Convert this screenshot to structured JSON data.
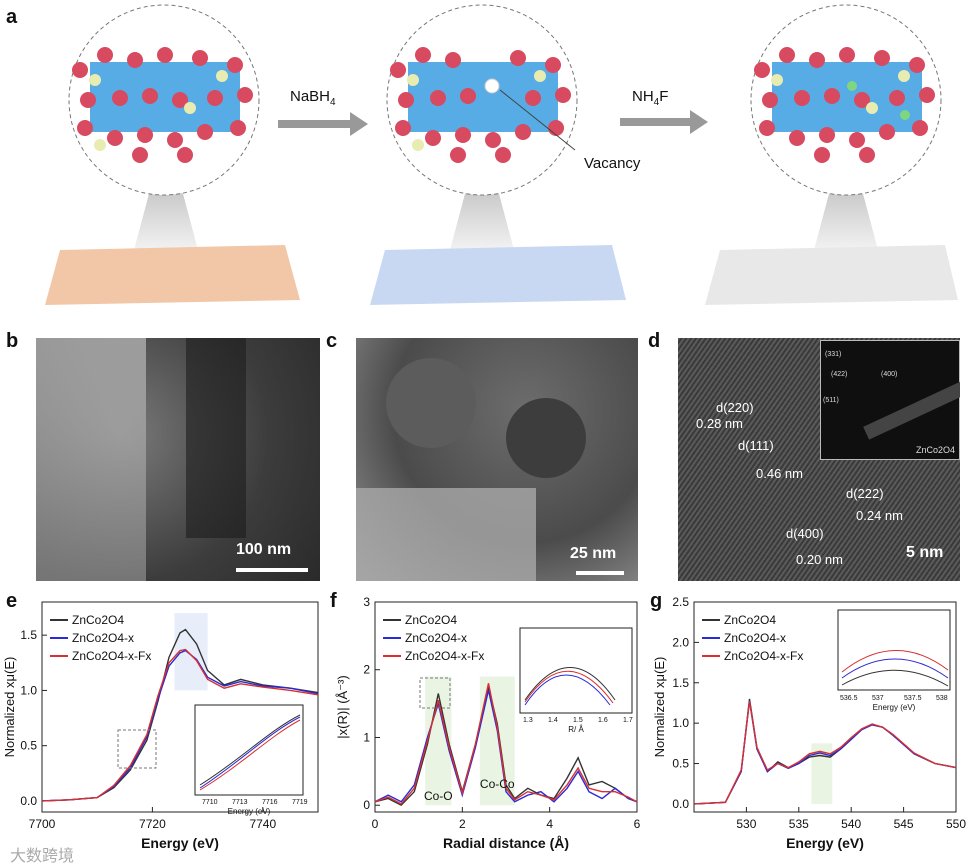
{
  "panel_a": {
    "letter": "a",
    "reagent1": "NaBH",
    "reagent1_sub": "4",
    "reagent2": "NH",
    "reagent2_sub1": "4",
    "reagent2_tail": "F",
    "vacancy": "Vacancy",
    "slab_colors": [
      "#f2c7a8",
      "#c9d8f2",
      "#e8e8e8"
    ]
  },
  "panel_b": {
    "letter": "b",
    "scale": "100 nm"
  },
  "panel_c": {
    "letter": "c",
    "scale": "25 nm"
  },
  "panel_d": {
    "letter": "d",
    "scale": "5 nm",
    "d220": "d(220)",
    "d220_val": "0.28 nm",
    "d111": "d(111)",
    "d111_val": "0.46 nm",
    "d222": "d(222)",
    "d222_val": "0.24 nm",
    "d400": "d(400)",
    "d400_val": "0.20 nm",
    "saed_labels": [
      "(331)",
      "(422)",
      "(400)",
      "(511)"
    ],
    "saed_caption": "ZnCo2O4"
  },
  "chart_data": [
    {
      "type": "line",
      "panel": "e",
      "xlabel": "Energy (eV)",
      "ylabel": "Normalized xμ(E)",
      "xlim": [
        7700,
        7750
      ],
      "ylim": [
        -0.1,
        1.8
      ],
      "xticks": [
        7700,
        7720,
        7740
      ],
      "yticks": [
        0.0,
        0.5,
        1.0,
        1.5
      ],
      "series": [
        {
          "name": "ZnCo2O4",
          "color": "#333333",
          "x": [
            7700,
            7705,
            7710,
            7713,
            7716,
            7719,
            7721,
            7723,
            7725,
            7726,
            7728,
            7730,
            7733,
            7736,
            7740,
            7745,
            7750
          ],
          "y": [
            0.0,
            0.01,
            0.03,
            0.12,
            0.28,
            0.55,
            0.9,
            1.3,
            1.52,
            1.55,
            1.42,
            1.18,
            1.05,
            1.1,
            1.05,
            1.02,
            0.98
          ]
        },
        {
          "name": "ZnCo2O4-x",
          "color": "#2a2ad8",
          "x": [
            7700,
            7705,
            7710,
            7713,
            7716,
            7719,
            7721,
            7723,
            7725,
            7726,
            7728,
            7730,
            7733,
            7736,
            7740,
            7745,
            7750
          ],
          "y": [
            0.0,
            0.01,
            0.03,
            0.13,
            0.3,
            0.58,
            0.92,
            1.22,
            1.34,
            1.36,
            1.28,
            1.12,
            1.04,
            1.08,
            1.04,
            1.02,
            0.97
          ]
        },
        {
          "name": "ZnCo2O4-x-Fx",
          "color": "#d83030",
          "x": [
            7700,
            7705,
            7710,
            7713,
            7716,
            7719,
            7721,
            7723,
            7725,
            7726,
            7728,
            7730,
            7733,
            7736,
            7740,
            7745,
            7750
          ],
          "y": [
            0.0,
            0.01,
            0.03,
            0.14,
            0.32,
            0.6,
            0.95,
            1.25,
            1.36,
            1.37,
            1.27,
            1.1,
            1.02,
            1.06,
            1.03,
            1.0,
            0.96
          ]
        }
      ],
      "inset": {
        "xlabel": "Energy (eV)",
        "xticks": [
          7710,
          7713,
          7716,
          7719
        ]
      }
    },
    {
      "type": "line",
      "panel": "f",
      "xlabel": "Radial distance (Å)",
      "ylabel": "|x(R)| (Å⁻³)",
      "xlim": [
        0,
        6
      ],
      "ylim": [
        -0.1,
        3
      ],
      "xticks": [
        0,
        2,
        4,
        6
      ],
      "yticks": [
        0,
        1,
        2,
        3
      ],
      "annotations": [
        "Co-O",
        "Co-Co"
      ],
      "series": [
        {
          "name": "ZnCo2O4",
          "color": "#333333",
          "x": [
            0,
            0.3,
            0.6,
            0.9,
            1.2,
            1.45,
            1.7,
            2.0,
            2.3,
            2.6,
            2.8,
            3.0,
            3.2,
            3.5,
            3.8,
            4.1,
            4.4,
            4.65,
            4.9,
            5.2,
            5.5,
            5.8,
            6.0
          ],
          "y": [
            0.05,
            0.1,
            0.0,
            0.2,
            0.9,
            1.65,
            0.9,
            0.2,
            0.9,
            1.75,
            1.2,
            0.3,
            0.1,
            0.25,
            0.15,
            0.1,
            0.4,
            0.7,
            0.3,
            0.35,
            0.25,
            0.1,
            0.05
          ]
        },
        {
          "name": "ZnCo2O4-x",
          "color": "#2a2ad8",
          "x": [
            0,
            0.3,
            0.6,
            0.9,
            1.2,
            1.45,
            1.7,
            2.0,
            2.3,
            2.6,
            2.8,
            3.0,
            3.2,
            3.5,
            3.8,
            4.1,
            4.4,
            4.65,
            4.9,
            5.2,
            5.5,
            5.8,
            6.0
          ],
          "y": [
            0.05,
            0.15,
            0.05,
            0.3,
            1.0,
            1.5,
            0.8,
            0.15,
            0.85,
            1.7,
            1.1,
            0.2,
            0.05,
            0.15,
            0.2,
            0.05,
            0.25,
            0.5,
            0.2,
            0.1,
            0.25,
            0.1,
            0.05
          ]
        },
        {
          "name": "ZnCo2O4-x-Fx",
          "color": "#d83030",
          "x": [
            0,
            0.3,
            0.6,
            0.9,
            1.2,
            1.45,
            1.7,
            2.0,
            2.3,
            2.6,
            2.8,
            3.0,
            3.2,
            3.5,
            3.8,
            4.1,
            4.4,
            4.65,
            4.9,
            5.2,
            5.5,
            5.8,
            6.0
          ],
          "y": [
            0.05,
            0.12,
            0.02,
            0.25,
            0.95,
            1.55,
            0.85,
            0.18,
            0.9,
            1.8,
            1.15,
            0.25,
            0.08,
            0.2,
            0.15,
            0.08,
            0.3,
            0.55,
            0.25,
            0.2,
            0.2,
            0.12,
            0.05
          ]
        }
      ],
      "inset": {
        "xlabel": "R/ Å",
        "xticks": [
          1.3,
          1.4,
          1.5,
          1.6,
          1.7
        ]
      }
    },
    {
      "type": "line",
      "panel": "g",
      "xlabel": "Energy (eV)",
      "ylabel": "Normalized xμ(E)",
      "xlim": [
        525,
        550
      ],
      "ylim": [
        -0.1,
        2.5
      ],
      "xticks": [
        530,
        535,
        540,
        545,
        550
      ],
      "yticks": [
        0.0,
        0.5,
        1.0,
        1.5,
        2.0,
        2.5
      ],
      "series": [
        {
          "name": "ZnCo2O4",
          "color": "#333333",
          "x": [
            525,
            528,
            529.5,
            530.3,
            531,
            532,
            533,
            534,
            535,
            536,
            537,
            538,
            539,
            540,
            541,
            542,
            543,
            544,
            546,
            548,
            550
          ],
          "y": [
            0.0,
            0.02,
            0.4,
            1.3,
            0.7,
            0.4,
            0.52,
            0.45,
            0.5,
            0.58,
            0.6,
            0.58,
            0.68,
            0.8,
            0.92,
            0.98,
            0.95,
            0.85,
            0.62,
            0.5,
            0.45
          ]
        },
        {
          "name": "ZnCo2O4-x",
          "color": "#2a2ad8",
          "x": [
            525,
            528,
            529.5,
            530.3,
            531,
            532,
            533,
            534,
            535,
            536,
            537,
            538,
            539,
            540,
            541,
            542,
            543,
            544,
            546,
            548,
            550
          ],
          "y": [
            0.0,
            0.02,
            0.4,
            1.28,
            0.68,
            0.4,
            0.5,
            0.44,
            0.5,
            0.6,
            0.63,
            0.6,
            0.68,
            0.8,
            0.92,
            0.98,
            0.95,
            0.85,
            0.62,
            0.5,
            0.45
          ]
        },
        {
          "name": "ZnCo2O4-x-Fx",
          "color": "#d83030",
          "x": [
            525,
            528,
            529.5,
            530.3,
            531,
            532,
            533,
            534,
            535,
            536,
            537,
            538,
            539,
            540,
            541,
            542,
            543,
            544,
            546,
            548,
            550
          ],
          "y": [
            0.0,
            0.02,
            0.42,
            1.27,
            0.7,
            0.42,
            0.5,
            0.45,
            0.52,
            0.62,
            0.65,
            0.62,
            0.7,
            0.82,
            0.93,
            0.99,
            0.95,
            0.86,
            0.63,
            0.5,
            0.45
          ]
        }
      ],
      "inset": {
        "xlabel": "Energy (eV)",
        "xticks": [
          536.5,
          537.0,
          537.5,
          538.0
        ]
      }
    }
  ],
  "watermark": {
    "text": "大数跨境"
  }
}
